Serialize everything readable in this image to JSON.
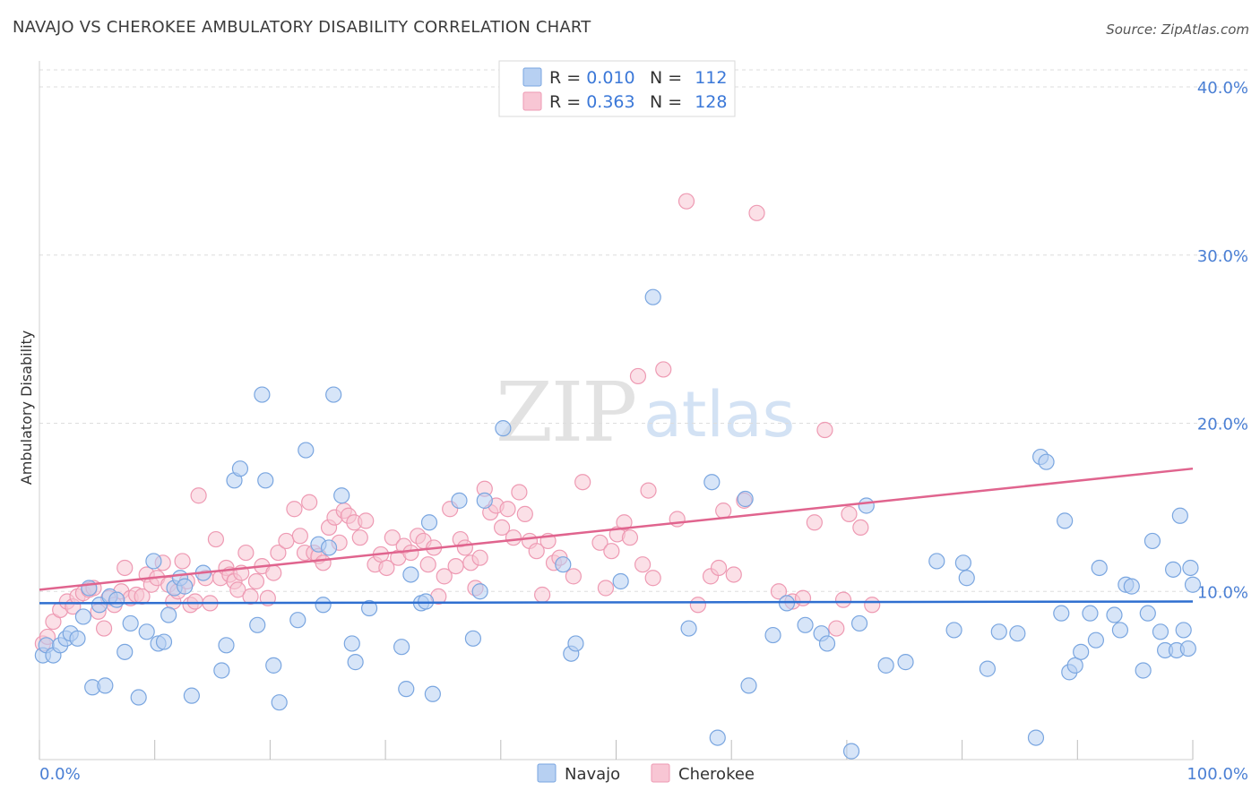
{
  "title": "NAVAJO VS CHEROKEE AMBULATORY DISABILITY CORRELATION CHART",
  "source": "Source: ZipAtlas.com",
  "watermark": {
    "zip": "ZIP",
    "atlas": "atlas"
  },
  "legend": {
    "navajo": {
      "r_label": "R = ",
      "r_value": "0.010",
      "n_label": "N = ",
      "n_value": "112"
    },
    "cherokee": {
      "r_label": "R = ",
      "r_value": "0.363",
      "n_label": "N = ",
      "n_value": "128"
    }
  },
  "colors": {
    "navajo_fill": "#b7d0f2",
    "navajo_stroke": "#7aa6e0",
    "navajo_line": "#2f6fd0",
    "cherokee_fill": "#f8c6d4",
    "cherokee_stroke": "#ee9ab3",
    "cherokee_line": "#e0648e",
    "grid": "#dddddd",
    "axis_text": "#4a7fd4"
  },
  "chart_data": {
    "type": "scatter",
    "title": "NAVAJO VS CHEROKEE AMBULATORY DISABILITY CORRELATION CHART",
    "xlabel": "",
    "ylabel": "Ambulatory Disability",
    "xlim": [
      0,
      100
    ],
    "ylim": [
      0,
      40
    ],
    "x_tick_labels": [
      "0.0%",
      "100.0%"
    ],
    "y_ticks": [
      10,
      20,
      30,
      40
    ],
    "y_tick_labels": [
      "10.0%",
      "20.0%",
      "30.0%",
      "40.0%"
    ],
    "grid": true,
    "legend_position": "top-center",
    "series": [
      {
        "name": "Navajo",
        "r": 0.01,
        "n": 112,
        "trend": {
          "x": [
            0,
            100
          ],
          "y": [
            9.3,
            9.4
          ]
        },
        "points": [
          [
            0.3,
            6.2
          ],
          [
            0.6,
            6.8
          ],
          [
            1.2,
            6.2
          ],
          [
            1.8,
            6.8
          ],
          [
            2.3,
            7.2
          ],
          [
            2.7,
            7.5
          ],
          [
            3.3,
            7.2
          ],
          [
            3.8,
            8.5
          ],
          [
            4.3,
            10.2
          ],
          [
            4.6,
            4.3
          ],
          [
            5.2,
            9.2
          ],
          [
            5.7,
            4.4
          ],
          [
            6.1,
            9.7
          ],
          [
            6.7,
            9.5
          ],
          [
            7.4,
            6.4
          ],
          [
            7.9,
            8.1
          ],
          [
            8.6,
            3.7
          ],
          [
            9.3,
            7.6
          ],
          [
            9.9,
            11.8
          ],
          [
            10.3,
            6.9
          ],
          [
            10.8,
            7.0
          ],
          [
            11.2,
            8.6
          ],
          [
            11.7,
            10.2
          ],
          [
            12.2,
            10.8
          ],
          [
            12.6,
            10.3
          ],
          [
            13.2,
            3.8
          ],
          [
            14.2,
            11.1
          ],
          [
            15.8,
            5.3
          ],
          [
            16.2,
            6.8
          ],
          [
            16.9,
            16.6
          ],
          [
            17.4,
            17.3
          ],
          [
            18.9,
            8.0
          ],
          [
            19.3,
            21.7
          ],
          [
            19.6,
            16.6
          ],
          [
            20.3,
            5.6
          ],
          [
            20.8,
            3.4
          ],
          [
            22.4,
            8.3
          ],
          [
            23.1,
            18.4
          ],
          [
            24.2,
            12.8
          ],
          [
            24.6,
            9.2
          ],
          [
            25.1,
            12.6
          ],
          [
            25.5,
            21.7
          ],
          [
            26.2,
            15.7
          ],
          [
            27.1,
            6.9
          ],
          [
            27.4,
            5.8
          ],
          [
            28.6,
            9.0
          ],
          [
            31.4,
            6.7
          ],
          [
            31.8,
            4.2
          ],
          [
            32.2,
            11.0
          ],
          [
            33.1,
            9.3
          ],
          [
            33.5,
            9.4
          ],
          [
            33.8,
            14.1
          ],
          [
            34.1,
            3.9
          ],
          [
            36.4,
            15.4
          ],
          [
            37.6,
            7.2
          ],
          [
            38.2,
            10.0
          ],
          [
            38.6,
            15.4
          ],
          [
            40.2,
            19.7
          ],
          [
            45.4,
            11.6
          ],
          [
            46.1,
            6.3
          ],
          [
            46.5,
            6.9
          ],
          [
            50.4,
            10.6
          ],
          [
            53.2,
            27.5
          ],
          [
            56.3,
            7.8
          ],
          [
            58.3,
            16.5
          ],
          [
            58.8,
            1.3
          ],
          [
            61.2,
            15.5
          ],
          [
            61.5,
            4.4
          ],
          [
            63.6,
            7.4
          ],
          [
            64.8,
            9.3
          ],
          [
            66.4,
            8.0
          ],
          [
            67.8,
            7.5
          ],
          [
            68.3,
            6.9
          ],
          [
            70.4,
            0.5
          ],
          [
            71.1,
            8.1
          ],
          [
            71.7,
            15.1
          ],
          [
            73.4,
            5.6
          ],
          [
            75.1,
            5.8
          ],
          [
            77.8,
            11.8
          ],
          [
            79.3,
            7.7
          ],
          [
            80.1,
            11.7
          ],
          [
            80.4,
            10.8
          ],
          [
            82.2,
            5.4
          ],
          [
            83.2,
            7.6
          ],
          [
            84.8,
            7.5
          ],
          [
            86.4,
            1.3
          ],
          [
            86.8,
            18.0
          ],
          [
            87.3,
            17.7
          ],
          [
            88.6,
            8.7
          ],
          [
            88.9,
            14.2
          ],
          [
            89.3,
            5.2
          ],
          [
            89.8,
            5.6
          ],
          [
            90.3,
            6.4
          ],
          [
            91.1,
            8.7
          ],
          [
            91.6,
            7.1
          ],
          [
            91.9,
            11.4
          ],
          [
            93.2,
            8.6
          ],
          [
            93.7,
            7.7
          ],
          [
            94.2,
            10.4
          ],
          [
            94.7,
            10.3
          ],
          [
            95.7,
            5.3
          ],
          [
            96.1,
            8.7
          ],
          [
            96.5,
            13.0
          ],
          [
            97.2,
            7.6
          ],
          [
            97.6,
            6.5
          ],
          [
            98.3,
            11.3
          ],
          [
            98.6,
            6.5
          ],
          [
            98.9,
            14.5
          ],
          [
            99.2,
            7.7
          ],
          [
            99.6,
            6.6
          ],
          [
            99.8,
            11.4
          ],
          [
            100.0,
            10.4
          ]
        ]
      },
      {
        "name": "Cherokee",
        "r": 0.363,
        "n": 128,
        "trend": {
          "x": [
            0,
            100
          ],
          "y": [
            10.1,
            17.3
          ]
        },
        "points": [
          [
            0.3,
            6.9
          ],
          [
            0.7,
            7.3
          ],
          [
            1.2,
            8.2
          ],
          [
            1.8,
            8.9
          ],
          [
            2.4,
            9.4
          ],
          [
            2.9,
            9.1
          ],
          [
            3.3,
            9.7
          ],
          [
            3.8,
            9.9
          ],
          [
            4.3,
            10.1
          ],
          [
            4.7,
            10.2
          ],
          [
            5.1,
            8.8
          ],
          [
            5.6,
            7.8
          ],
          [
            6.0,
            9.6
          ],
          [
            6.5,
            9.2
          ],
          [
            7.1,
            10.0
          ],
          [
            7.4,
            11.4
          ],
          [
            7.9,
            9.6
          ],
          [
            8.4,
            9.8
          ],
          [
            8.9,
            9.7
          ],
          [
            9.3,
            11.0
          ],
          [
            9.7,
            10.4
          ],
          [
            10.2,
            10.8
          ],
          [
            10.7,
            11.7
          ],
          [
            11.2,
            10.4
          ],
          [
            11.6,
            9.4
          ],
          [
            12.0,
            10.0
          ],
          [
            12.4,
            11.8
          ],
          [
            12.8,
            10.6
          ],
          [
            13.1,
            9.2
          ],
          [
            13.5,
            9.4
          ],
          [
            13.8,
            15.7
          ],
          [
            14.4,
            10.8
          ],
          [
            14.8,
            9.3
          ],
          [
            15.3,
            13.1
          ],
          [
            15.7,
            10.8
          ],
          [
            16.2,
            11.4
          ],
          [
            16.5,
            11.0
          ],
          [
            16.9,
            10.6
          ],
          [
            17.2,
            10.1
          ],
          [
            17.5,
            11.1
          ],
          [
            17.9,
            12.3
          ],
          [
            18.3,
            9.7
          ],
          [
            18.8,
            10.6
          ],
          [
            19.3,
            11.5
          ],
          [
            19.8,
            9.6
          ],
          [
            20.3,
            11.1
          ],
          [
            20.7,
            12.3
          ],
          [
            21.4,
            13.0
          ],
          [
            22.1,
            14.9
          ],
          [
            22.6,
            13.3
          ],
          [
            23.0,
            12.3
          ],
          [
            23.4,
            15.3
          ],
          [
            23.8,
            12.3
          ],
          [
            24.2,
            12.1
          ],
          [
            24.6,
            11.7
          ],
          [
            25.1,
            13.8
          ],
          [
            25.6,
            14.4
          ],
          [
            26.0,
            12.9
          ],
          [
            26.4,
            14.8
          ],
          [
            26.8,
            14.5
          ],
          [
            27.3,
            14.1
          ],
          [
            27.8,
            13.2
          ],
          [
            28.3,
            14.2
          ],
          [
            29.1,
            11.6
          ],
          [
            29.6,
            12.2
          ],
          [
            30.1,
            11.4
          ],
          [
            30.6,
            13.2
          ],
          [
            31.1,
            12.0
          ],
          [
            31.6,
            12.7
          ],
          [
            32.2,
            12.3
          ],
          [
            32.8,
            13.3
          ],
          [
            33.3,
            13.0
          ],
          [
            33.7,
            11.6
          ],
          [
            34.2,
            12.6
          ],
          [
            34.6,
            9.7
          ],
          [
            35.1,
            10.9
          ],
          [
            35.6,
            14.9
          ],
          [
            36.1,
            11.5
          ],
          [
            36.5,
            13.1
          ],
          [
            36.9,
            12.6
          ],
          [
            37.4,
            11.7
          ],
          [
            37.8,
            10.2
          ],
          [
            38.2,
            12.0
          ],
          [
            38.6,
            16.1
          ],
          [
            39.1,
            14.7
          ],
          [
            39.6,
            15.1
          ],
          [
            40.1,
            13.8
          ],
          [
            40.6,
            14.9
          ],
          [
            41.1,
            13.2
          ],
          [
            41.6,
            15.9
          ],
          [
            42.1,
            14.6
          ],
          [
            42.5,
            13.0
          ],
          [
            43.1,
            12.4
          ],
          [
            43.6,
            9.8
          ],
          [
            44.1,
            13.0
          ],
          [
            44.6,
            11.7
          ],
          [
            45.1,
            12.0
          ],
          [
            46.3,
            10.9
          ],
          [
            47.1,
            16.5
          ],
          [
            48.6,
            12.9
          ],
          [
            49.1,
            10.2
          ],
          [
            49.6,
            12.4
          ],
          [
            50.1,
            13.4
          ],
          [
            50.7,
            14.1
          ],
          [
            51.2,
            13.2
          ],
          [
            51.9,
            22.8
          ],
          [
            52.3,
            11.6
          ],
          [
            52.8,
            16.0
          ],
          [
            53.2,
            10.8
          ],
          [
            54.1,
            23.2
          ],
          [
            55.3,
            14.3
          ],
          [
            56.1,
            33.2
          ],
          [
            57.1,
            9.2
          ],
          [
            58.2,
            10.9
          ],
          [
            58.9,
            11.4
          ],
          [
            59.3,
            14.8
          ],
          [
            60.2,
            11.0
          ],
          [
            61.1,
            15.4
          ],
          [
            62.2,
            32.5
          ],
          [
            64.1,
            10.0
          ],
          [
            65.3,
            9.4
          ],
          [
            66.2,
            9.6
          ],
          [
            67.2,
            14.1
          ],
          [
            68.1,
            19.6
          ],
          [
            69.1,
            7.8
          ],
          [
            69.7,
            9.5
          ],
          [
            70.2,
            14.6
          ],
          [
            71.2,
            13.8
          ],
          [
            72.2,
            9.2
          ]
        ]
      }
    ]
  }
}
